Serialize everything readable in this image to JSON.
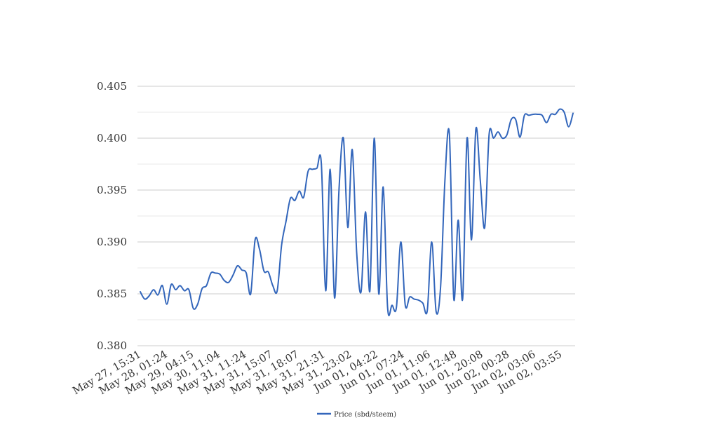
{
  "chart_data": {
    "type": "line",
    "title": "",
    "xlabel": "",
    "ylabel": "",
    "ylim": [
      0.38,
      0.405
    ],
    "y_ticks": [
      0.38,
      0.385,
      0.39,
      0.395,
      0.4,
      0.405
    ],
    "y_tick_labels": [
      "0.380",
      "0.385",
      "0.390",
      "0.395",
      "0.400",
      "0.405"
    ],
    "x_tick_labels": [
      "May 27, 15:31",
      "May 28, 01:24",
      "May 29, 04:15",
      "May 30, 11:04",
      "May 31, 11:24",
      "May 31, 15:07",
      "May 31, 18:07",
      "May 31, 21:31",
      "May 31, 23:02",
      "Jun 01, 04:22",
      "Jun 01, 07:24",
      "Jun 01, 11:06",
      "Jun 01, 12:48",
      "Jun 01, 20:08",
      "Jun 02, 00:28",
      "Jun 02, 03:06",
      "Jun 02, 03:55"
    ],
    "grid": true,
    "legend": "bottom-center",
    "colors": {
      "series": "#3366bb",
      "grid_major": "#cccccc",
      "grid_minor": "#e8e8e8"
    },
    "series": [
      {
        "name": "Price (sbd/steem)",
        "values": [
          0.3852,
          0.3845,
          0.3848,
          0.3854,
          0.3849,
          0.3858,
          0.384,
          0.3859,
          0.3854,
          0.3858,
          0.3853,
          0.3854,
          0.3836,
          0.384,
          0.3855,
          0.3858,
          0.387,
          0.387,
          0.3869,
          0.3863,
          0.3861,
          0.3868,
          0.3877,
          0.3873,
          0.387,
          0.385,
          0.3902,
          0.3893,
          0.3872,
          0.3871,
          0.3858,
          0.3853,
          0.3897,
          0.392,
          0.3942,
          0.394,
          0.3949,
          0.3943,
          0.3968,
          0.397,
          0.3971,
          0.3976,
          0.3853,
          0.397,
          0.3846,
          0.395,
          0.4,
          0.3914,
          0.3989,
          0.389,
          0.3852,
          0.3929,
          0.3853,
          0.4,
          0.385,
          0.3953,
          0.3837,
          0.3839,
          0.3837,
          0.39,
          0.3839,
          0.3847,
          0.3845,
          0.3844,
          0.3841,
          0.3834,
          0.39,
          0.3833,
          0.3856,
          0.396,
          0.4004,
          0.3845,
          0.3921,
          0.3845,
          0.4,
          0.3902,
          0.4009,
          0.3959,
          0.3914,
          0.4004,
          0.4,
          0.4006,
          0.4,
          0.4003,
          0.4018,
          0.4018,
          0.4001,
          0.4022,
          0.4022,
          0.4023,
          0.4023,
          0.4022,
          0.4015,
          0.4023,
          0.4023,
          0.4028,
          0.4025,
          0.4011,
          0.4024
        ]
      }
    ]
  }
}
